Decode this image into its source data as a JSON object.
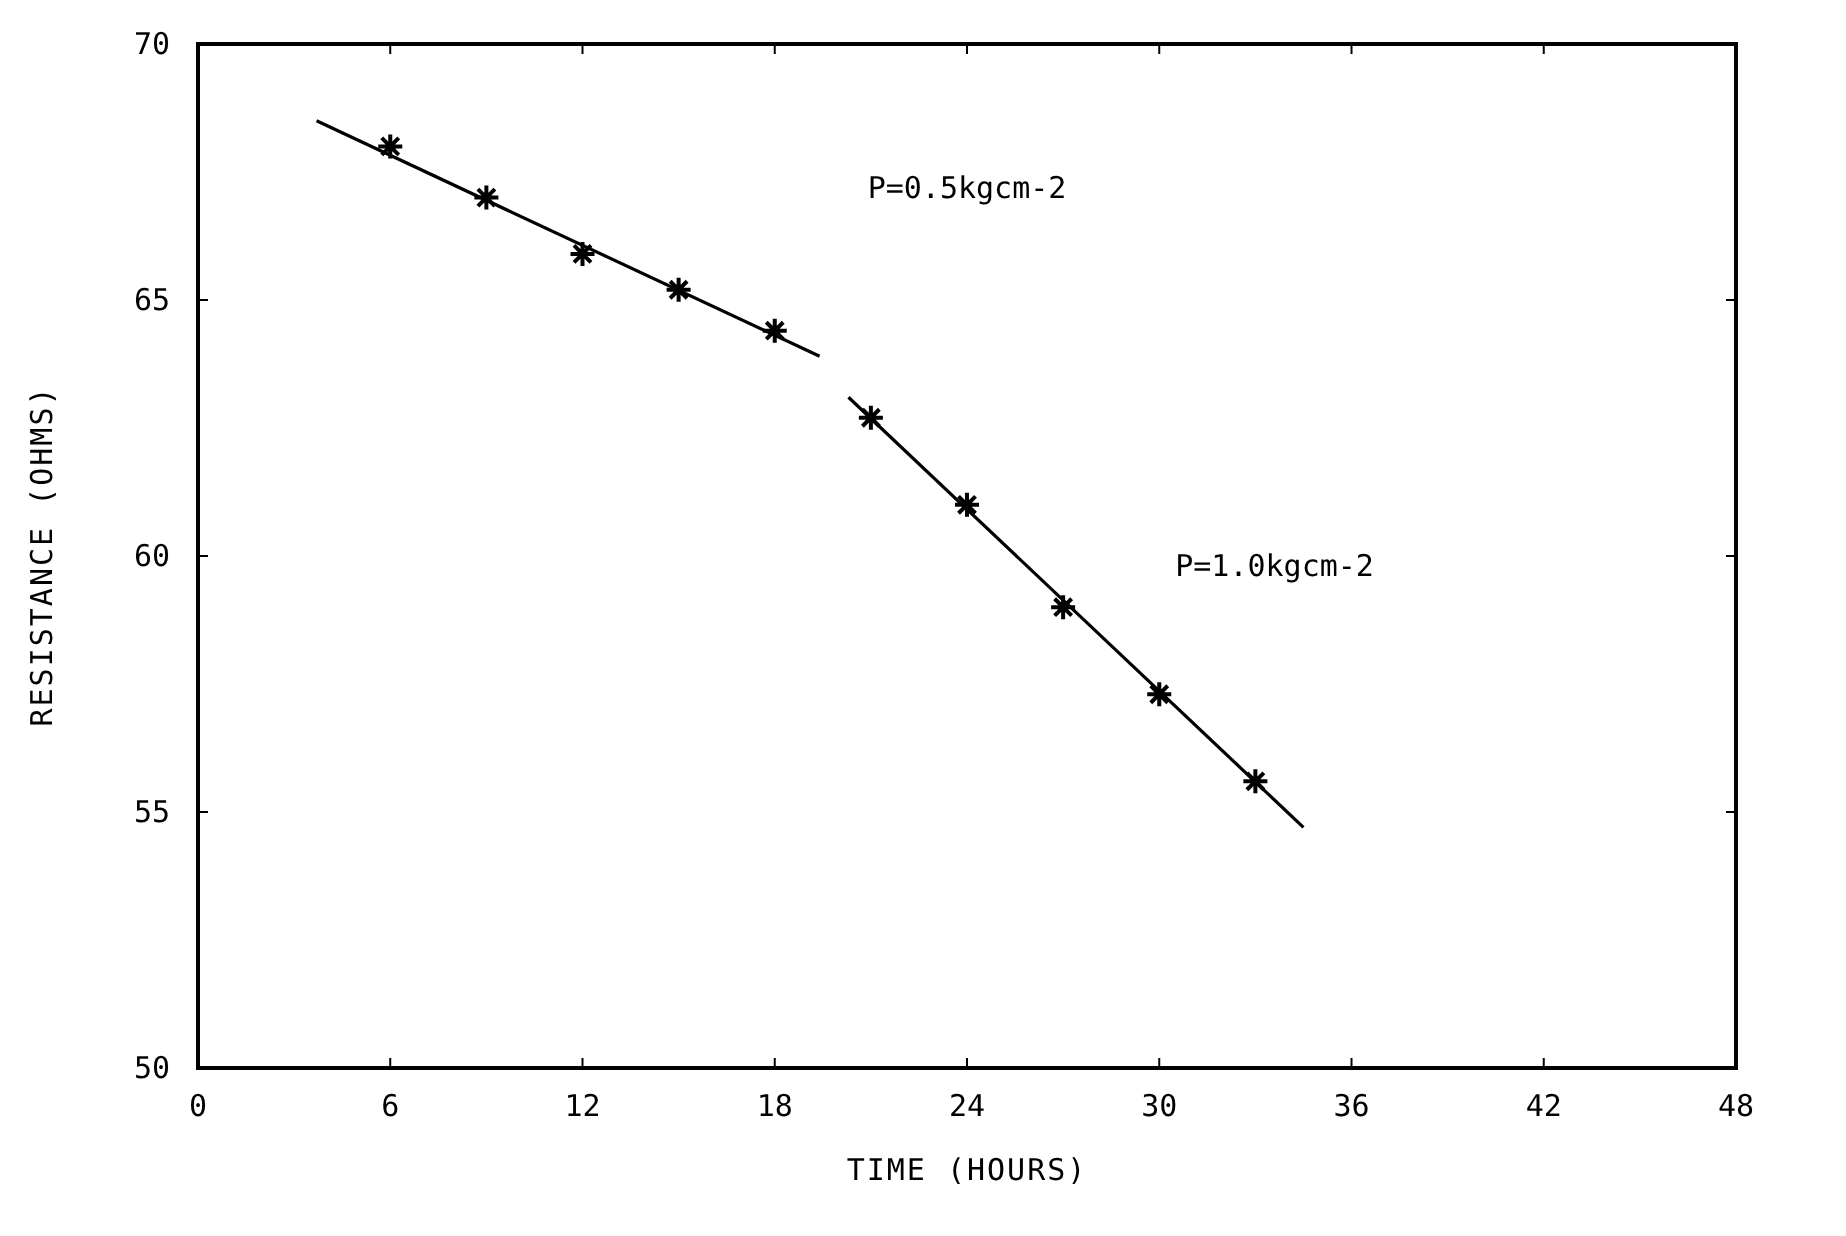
{
  "chart_data": {
    "type": "scatter",
    "xlabel": "TIME (HOURS)",
    "ylabel": "RESISTANCE (OHMS)",
    "xlim": [
      0,
      48
    ],
    "xticks": [
      0,
      6,
      12,
      18,
      24,
      30,
      36,
      42,
      48
    ],
    "ylim": [
      50,
      70
    ],
    "yticks": [
      50,
      55,
      60,
      65,
      70
    ],
    "grid": false,
    "series": [
      {
        "color": "#000000",
        "marker": "cross",
        "x": [
          6,
          9,
          12,
          15,
          18
        ],
        "values": [
          68.0,
          67.0,
          65.9,
          65.2,
          64.4
        ]
      },
      {
        "color": "#000000",
        "marker": "cross",
        "x": [
          21,
          24,
          27,
          30,
          33
        ],
        "values": [
          62.7,
          61.0,
          59.0,
          57.3,
          55.6
        ]
      },
      {
        "type": "line",
        "color": "#000000",
        "marker": "none",
        "line_style": "solid",
        "x": [
          3.7,
          19.4
        ],
        "values": [
          68.5,
          63.9
        ]
      },
      {
        "type": "line",
        "color": "#000000",
        "marker": "none",
        "line_style": "solid",
        "x": [
          20.3,
          34.5
        ],
        "values": [
          63.1,
          54.7
        ]
      }
    ],
    "annotations": [
      "P=0.5kgcm-2",
      "P=1.0kgcm-2"
    ]
  }
}
